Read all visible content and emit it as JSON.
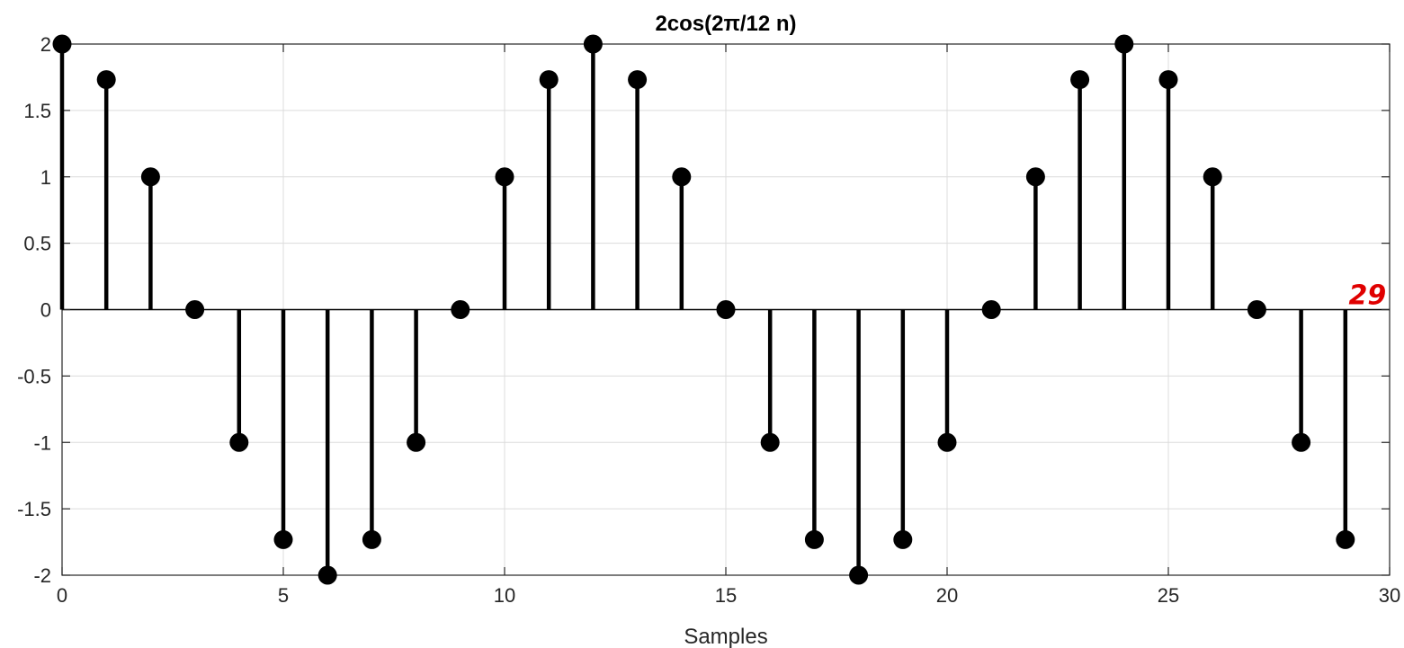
{
  "chart_data": {
    "type": "stem",
    "title": "2cos(2π/12 n)",
    "xlabel": "Samples",
    "ylabel": "",
    "xlim": [
      0,
      30
    ],
    "ylim": [
      -2,
      2
    ],
    "xticks": [
      0,
      5,
      10,
      15,
      20,
      25,
      30
    ],
    "yticks": [
      2,
      1.5,
      1,
      0.5,
      0,
      -0.5,
      -1,
      -1.5,
      -2
    ],
    "grid": true,
    "x": [
      0,
      1,
      2,
      3,
      4,
      5,
      6,
      7,
      8,
      9,
      10,
      11,
      12,
      13,
      14,
      15,
      16,
      17,
      18,
      19,
      20,
      21,
      22,
      23,
      24,
      25,
      26,
      27,
      28,
      29
    ],
    "y": [
      2,
      1.732,
      1,
      0,
      -1,
      -1.732,
      -2,
      -1.732,
      -1,
      0,
      1,
      1.732,
      2,
      1.732,
      1,
      0,
      -1,
      -1.732,
      -2,
      -1.732,
      -1,
      0,
      1,
      1.732,
      2,
      1.732,
      1,
      0,
      -1,
      -1.732
    ],
    "annotations": [
      {
        "text": "29",
        "x": 29.5,
        "y": 0.15
      }
    ],
    "colors": {
      "stem": "#000000",
      "annotation": "#e00000",
      "grid": "#dcdcdc",
      "axis": "#262626"
    }
  }
}
